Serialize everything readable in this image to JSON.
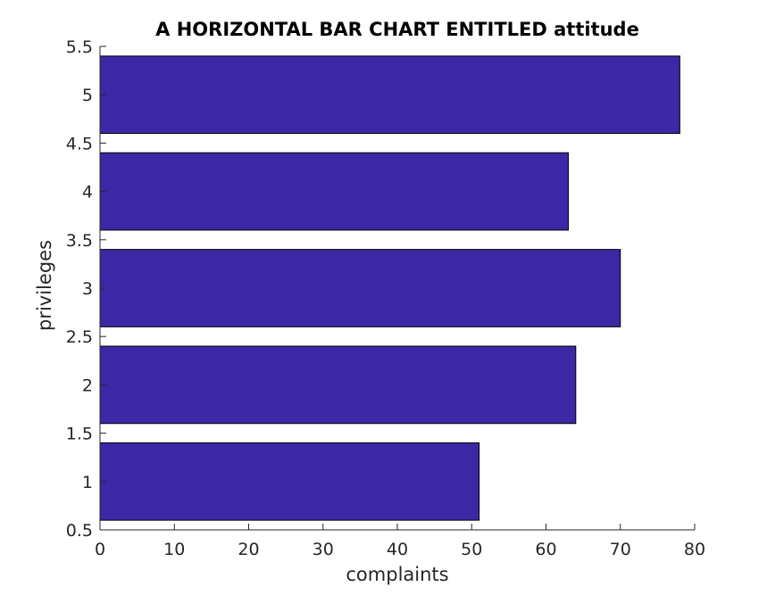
{
  "chart_data": {
    "type": "bar",
    "orientation": "horizontal",
    "title": "A HORIZONTAL BAR CHART ENTITLED attitude",
    "xlabel": "complaints",
    "ylabel": "privileges",
    "categories": [
      1,
      2,
      3,
      4,
      5
    ],
    "values": [
      51,
      64,
      70,
      63,
      78
    ],
    "xlim": [
      0,
      80
    ],
    "ylim": [
      0.5,
      5.5
    ],
    "xticks": [
      "0",
      "10",
      "20",
      "30",
      "40",
      "50",
      "60",
      "70",
      "80"
    ],
    "yticks": [
      "0.5",
      "1",
      "1.5",
      "2",
      "2.5",
      "3",
      "3.5",
      "4",
      "4.5",
      "5",
      "5.5"
    ],
    "bar_color": "#3c28a5",
    "edge_color": "#000000",
    "grid": false,
    "legend": "none"
  }
}
